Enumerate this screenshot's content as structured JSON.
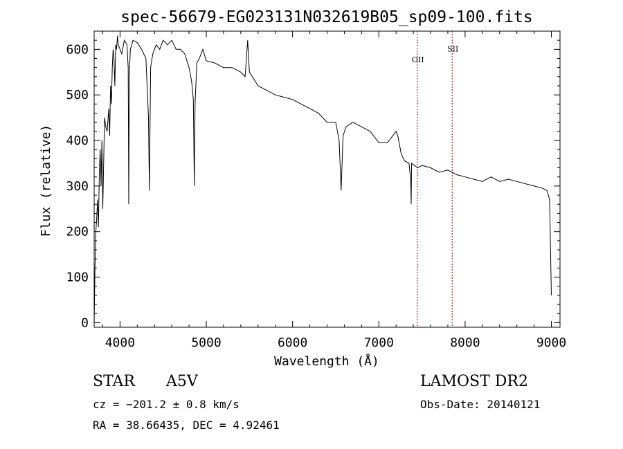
{
  "chart_data": {
    "type": "line",
    "title": "spec-56679-EG023131N032619B05_sp09-100.fits",
    "xlabel": "Wavelength (Å)",
    "ylabel": "Flux (relative)",
    "xlim": [
      3700,
      9100
    ],
    "ylim": [
      -10,
      640
    ],
    "xticks": [
      4000,
      5000,
      6000,
      7000,
      8000,
      9000
    ],
    "yticks": [
      0,
      100,
      200,
      300,
      400,
      500,
      600
    ],
    "grid": false,
    "line_color": "#000000",
    "marker_color": "#8b0000",
    "markers": [
      {
        "label": "OII",
        "x": 7445,
        "label_y": 572
      },
      {
        "label": "SII",
        "x": 7850,
        "label_y": 595
      }
    ],
    "series": [
      {
        "x": [
          3700,
          3710,
          3720,
          3730,
          3740,
          3750,
          3760,
          3770,
          3780,
          3790,
          3800,
          3820,
          3835,
          3850,
          3870,
          3880,
          3890,
          3900,
          3910,
          3920,
          3930,
          3940,
          3950,
          3960,
          3970,
          3980,
          4000,
          4020,
          4050,
          4080,
          4095,
          4101,
          4107,
          4120,
          4150,
          4200,
          4250,
          4300,
          4330,
          4340,
          4345,
          4355,
          4380,
          4420,
          4460,
          4500,
          4550,
          4600,
          4650,
          4700,
          4750,
          4800,
          4830,
          4850,
          4861,
          4870,
          4890,
          4920,
          4960,
          5000,
          5100,
          5200,
          5300,
          5400,
          5450,
          5480,
          5500,
          5600,
          5700,
          5800,
          5900,
          6000,
          6100,
          6200,
          6300,
          6400,
          6500,
          6540,
          6563,
          6585,
          6620,
          6700,
          6800,
          6900,
          7000,
          7100,
          7200,
          7220,
          7260,
          7300,
          7350,
          7370,
          7375,
          7380,
          7450,
          7500,
          7600,
          7700,
          7800,
          7850,
          7900,
          8000,
          8100,
          8200,
          8300,
          8400,
          8500,
          8600,
          8700,
          8800,
          8900,
          8950,
          8980,
          9000
        ],
        "y": [
          0,
          120,
          200,
          230,
          270,
          210,
          330,
          380,
          300,
          400,
          250,
          450,
          430,
          420,
          470,
          410,
          520,
          480,
          560,
          600,
          580,
          520,
          610,
          600,
          630,
          610,
          600,
          590,
          620,
          610,
          560,
          260,
          540,
          600,
          620,
          615,
          600,
          580,
          450,
          290,
          380,
          560,
          590,
          610,
          600,
          620,
          610,
          620,
          600,
          600,
          590,
          560,
          530,
          490,
          300,
          480,
          570,
          580,
          600,
          575,
          570,
          560,
          560,
          550,
          540,
          620,
          550,
          520,
          510,
          500,
          495,
          490,
          480,
          470,
          460,
          440,
          440,
          400,
          290,
          410,
          430,
          440,
          430,
          420,
          395,
          395,
          420,
          410,
          370,
          355,
          350,
          310,
          260,
          350,
          340,
          345,
          340,
          330,
          335,
          330,
          325,
          320,
          315,
          310,
          320,
          310,
          315,
          310,
          305,
          300,
          295,
          290,
          270,
          60
        ]
      }
    ]
  },
  "info": {
    "star_class": "STAR",
    "star_type": "A5V",
    "cz": "cz = −201.2 ± 0.8 km/s",
    "radec": "RA =  38.66435, DEC =   4.92461",
    "survey": "LAMOST DR2",
    "obs_date": "Obs-Date: 20140121"
  }
}
